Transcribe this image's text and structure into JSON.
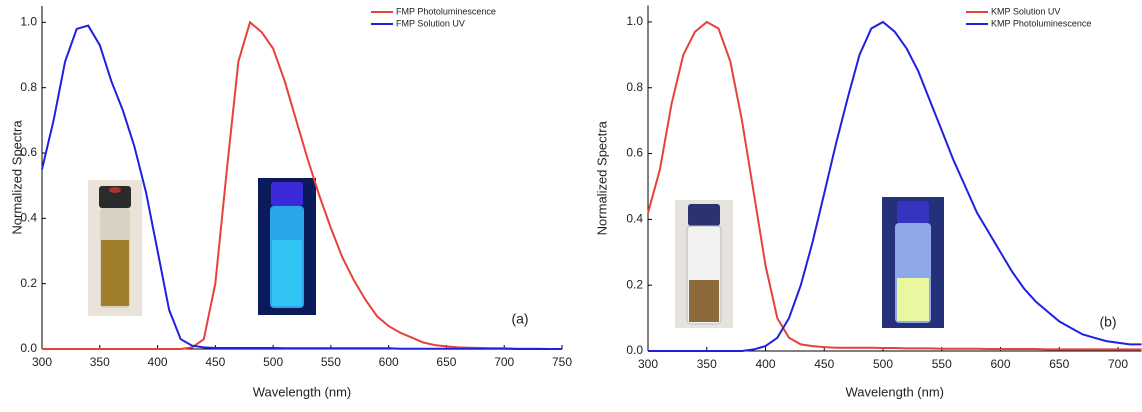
{
  "chart_data": [
    {
      "type": "line",
      "x_label": "Wavelength (nm)",
      "y_label": "Normalized Spectra",
      "annotation": "(a)",
      "x": [
        300,
        310,
        320,
        330,
        340,
        350,
        360,
        370,
        380,
        390,
        400,
        410,
        420,
        430,
        440,
        450,
        460,
        470,
        480,
        490,
        500,
        510,
        520,
        530,
        540,
        550,
        560,
        570,
        580,
        590,
        600,
        610,
        620,
        630,
        640,
        650,
        660,
        670,
        680,
        690,
        700,
        710,
        720,
        730,
        740,
        750
      ],
      "series": [
        {
          "name": "FMP Photoluminescence",
          "color": "#e8413a",
          "values": [
            0,
            0,
            0,
            0,
            0,
            0,
            0,
            0,
            0,
            0,
            0,
            0,
            0,
            0.005,
            0.03,
            0.2,
            0.55,
            0.88,
            1.0,
            0.97,
            0.92,
            0.82,
            0.7,
            0.58,
            0.47,
            0.37,
            0.28,
            0.21,
            0.15,
            0.1,
            0.07,
            0.05,
            0.035,
            0.02,
            0.012,
            0.008,
            0.005,
            0.004,
            0.003,
            0.002,
            0.002,
            0.001,
            0.001,
            0.001,
            0,
            0
          ]
        },
        {
          "name": "FMP Solution UV",
          "color": "#2020e0",
          "values": [
            0.55,
            0.7,
            0.88,
            0.98,
            0.99,
            0.93,
            0.82,
            0.73,
            0.62,
            0.48,
            0.3,
            0.12,
            0.03,
            0.01,
            0.005,
            0.003,
            0.003,
            0.003,
            0.003,
            0.003,
            0.003,
            0.002,
            0.002,
            0.002,
            0.002,
            0.002,
            0.002,
            0.002,
            0.002,
            0.002,
            0.002,
            0.001,
            0.001,
            0.001,
            0.001,
            0.001,
            0.001,
            0.001,
            0.001,
            0.001,
            0.001,
            0,
            0,
            0,
            0,
            0
          ]
        }
      ],
      "xlim": [
        300,
        750
      ],
      "xticks": [
        300,
        350,
        400,
        450,
        500,
        550,
        600,
        650,
        700,
        750
      ],
      "ylim": [
        0,
        1.05
      ],
      "yticks": [
        {
          "value": 0,
          "label": "0.0"
        },
        0.2,
        0.4,
        0.6,
        0.8,
        {
          "value": 1,
          "label": "1.0"
        }
      ],
      "legend": "upper right"
    },
    {
      "type": "line",
      "x_label": "Wavelength (nm)",
      "y_label": "Normalized Spectra",
      "annotation": "(b)",
      "x": [
        300,
        310,
        320,
        330,
        340,
        350,
        360,
        370,
        380,
        390,
        400,
        410,
        420,
        430,
        440,
        450,
        460,
        470,
        480,
        490,
        500,
        510,
        520,
        530,
        540,
        550,
        560,
        570,
        580,
        590,
        600,
        610,
        620,
        630,
        640,
        650,
        660,
        670,
        680,
        690,
        700,
        710,
        720
      ],
      "series": [
        {
          "name": "KMP Solution UV",
          "color": "#e8413a",
          "values": [
            0.42,
            0.55,
            0.75,
            0.9,
            0.97,
            1.0,
            0.98,
            0.88,
            0.7,
            0.48,
            0.26,
            0.1,
            0.04,
            0.02,
            0.015,
            0.012,
            0.01,
            0.01,
            0.01,
            0.01,
            0.009,
            0.009,
            0.008,
            0.008,
            0.008,
            0.007,
            0.007,
            0.007,
            0.007,
            0.006,
            0.006,
            0.006,
            0.006,
            0.006,
            0.005,
            0.005,
            0.005,
            0.005,
            0.005,
            0.005,
            0.005,
            0.005,
            0.005
          ]
        },
        {
          "name": "KMP Photoluminescence",
          "color": "#2020e0",
          "values": [
            0,
            0,
            0,
            0,
            0,
            0,
            0,
            0,
            0,
            0.005,
            0.015,
            0.04,
            0.1,
            0.2,
            0.33,
            0.48,
            0.63,
            0.77,
            0.9,
            0.98,
            1.0,
            0.97,
            0.92,
            0.85,
            0.76,
            0.67,
            0.58,
            0.5,
            0.42,
            0.36,
            0.3,
            0.24,
            0.19,
            0.15,
            0.12,
            0.09,
            0.07,
            0.05,
            0.04,
            0.03,
            0.025,
            0.02,
            0.02
          ]
        }
      ],
      "xlim": [
        300,
        720
      ],
      "xticks": [
        300,
        350,
        400,
        450,
        500,
        550,
        600,
        650,
        700
      ],
      "ylim": [
        0,
        1.05
      ],
      "yticks": [
        {
          "value": 0,
          "label": "0.0"
        },
        0.2,
        0.4,
        0.6,
        0.8,
        {
          "value": 1,
          "label": "1.0"
        }
      ],
      "legend": "upper right"
    }
  ]
}
